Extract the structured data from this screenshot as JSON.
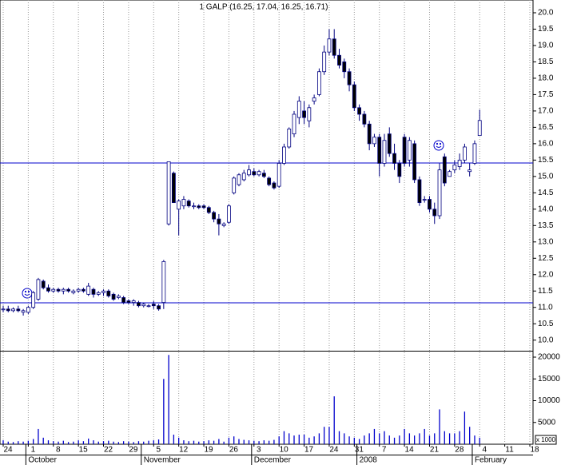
{
  "chart_data": {
    "type": "candlestick",
    "title": "1 GALP (16.25, 17.04, 16.25, 16.71)",
    "categories": [
      "24",
      null,
      null,
      null,
      null,
      "1",
      null,
      null,
      null,
      null,
      "8",
      null,
      null,
      null,
      null,
      "15",
      null,
      null,
      null,
      null,
      "22",
      null,
      null,
      null,
      null,
      "29",
      null,
      null,
      null,
      null,
      "5",
      null,
      null,
      null,
      null,
      "12",
      null,
      null,
      null,
      null,
      "19",
      null,
      null,
      null,
      null,
      "26",
      null,
      null,
      null,
      null,
      "3",
      null,
      null,
      null,
      null,
      "10",
      null,
      null,
      null,
      null,
      "17",
      null,
      null,
      null,
      null,
      "24",
      null,
      null,
      null,
      null,
      "31",
      null,
      null,
      null,
      null,
      "7",
      null,
      null,
      null,
      null,
      "14",
      null,
      null,
      null,
      null,
      "21",
      null,
      null,
      null,
      null,
      "28",
      null,
      null,
      null,
      null,
      "4",
      null,
      null,
      null,
      null,
      "11",
      null,
      null,
      null,
      null,
      "18"
    ],
    "months": [
      "October",
      "November",
      "December",
      "2008",
      "February"
    ],
    "open": [
      10.95,
      10.95,
      10.9,
      10.95,
      10.85,
      10.85,
      11.0,
      11.25,
      11.8,
      11.6,
      11.5,
      11.55,
      11.5,
      11.55,
      11.45,
      11.5,
      11.55,
      11.4,
      11.55,
      11.4,
      11.45,
      11.5,
      11.4,
      11.3,
      11.3,
      11.2,
      11.15,
      11.15,
      11.05,
      11.05,
      11.1,
      11.05,
      11.15,
      13.55,
      15.1,
      14.0,
      14.1,
      14.25,
      14.1,
      14.1,
      14.1,
      14.05,
      13.9,
      13.7,
      13.5,
      13.6,
      14.5,
      14.75,
      14.9,
      15.05,
      15.15,
      15.05,
      15.1,
      14.95,
      14.8,
      14.7,
      15.4,
      15.9,
      16.3,
      16.8,
      17.0,
      16.7,
      17.3,
      17.5,
      18.2,
      18.8,
      19.2,
      18.7,
      18.5,
      18.2,
      17.8,
      17.1,
      16.9,
      16.6,
      16.0,
      16.2,
      15.4,
      16.3,
      15.7,
      15.4,
      16.2,
      15.5,
      16.0,
      14.9,
      14.3,
      14.3,
      14.0,
      13.8,
      15.6,
      15.0,
      15.2,
      15.3,
      15.5,
      15.15,
      15.4,
      16.25,
      null,
      null,
      null,
      null,
      null,
      null,
      null,
      null,
      null,
      null
    ],
    "high": [
      11.05,
      11.05,
      11.0,
      11.05,
      10.95,
      11.05,
      11.5,
      11.9,
      11.85,
      11.7,
      11.6,
      11.6,
      11.6,
      11.6,
      11.55,
      11.6,
      11.6,
      11.75,
      11.6,
      11.5,
      11.55,
      11.55,
      11.45,
      11.4,
      11.35,
      11.25,
      11.25,
      11.2,
      11.15,
      11.1,
      11.2,
      11.1,
      12.45,
      15.45,
      15.15,
      14.3,
      14.4,
      14.3,
      14.2,
      14.15,
      14.15,
      14.1,
      13.95,
      13.85,
      13.6,
      14.15,
      15.0,
      15.1,
      15.2,
      15.35,
      15.25,
      15.2,
      15.2,
      15.0,
      14.85,
      15.5,
      16.0,
      16.5,
      17.0,
      17.45,
      17.3,
      17.2,
      17.5,
      18.3,
      19.0,
      19.5,
      19.5,
      18.9,
      18.6,
      18.3,
      17.9,
      17.2,
      17.0,
      16.7,
      16.3,
      16.3,
      16.3,
      16.5,
      16.0,
      15.5,
      16.3,
      16.2,
      16.1,
      15.0,
      14.4,
      14.4,
      14.2,
      15.4,
      15.7,
      15.2,
      15.5,
      15.7,
      16.0,
      15.4,
      16.1,
      17.04,
      null,
      null,
      null,
      null,
      null,
      null,
      null,
      null,
      null,
      null
    ],
    "low": [
      10.85,
      10.85,
      10.85,
      10.85,
      10.75,
      10.8,
      10.95,
      11.2,
      11.55,
      11.45,
      11.45,
      11.45,
      11.4,
      11.45,
      11.4,
      11.45,
      11.45,
      11.35,
      11.3,
      11.35,
      11.35,
      11.3,
      11.2,
      11.25,
      11.1,
      11.1,
      11.05,
      11.0,
      11.0,
      11.0,
      10.95,
      10.9,
      10.95,
      13.5,
      14.2,
      13.2,
      14.0,
      14.05,
      14.0,
      14.0,
      14.0,
      13.85,
      13.6,
      13.2,
      13.45,
      13.55,
      14.45,
      14.7,
      14.85,
      15.0,
      15.0,
      15.0,
      14.95,
      14.7,
      14.6,
      14.65,
      15.35,
      15.85,
      16.2,
      16.6,
      16.6,
      16.5,
      17.2,
      17.45,
      18.1,
      18.7,
      18.6,
      18.3,
      18.0,
      17.6,
      17.0,
      16.7,
      16.5,
      15.8,
      15.9,
      15.0,
      15.3,
      15.6,
      15.2,
      14.8,
      15.3,
      15.3,
      14.8,
      14.1,
      14.2,
      13.9,
      13.55,
      13.7,
      14.7,
      15.0,
      15.1,
      15.2,
      15.4,
      15.0,
      15.35,
      16.25,
      null,
      null,
      null,
      null,
      null,
      null,
      null,
      null,
      null,
      null
    ],
    "close": [
      10.95,
      10.9,
      10.95,
      10.9,
      10.9,
      11.0,
      11.45,
      11.85,
      11.6,
      11.5,
      11.55,
      11.5,
      11.55,
      11.5,
      11.5,
      11.55,
      11.5,
      11.65,
      11.4,
      11.45,
      11.5,
      11.35,
      11.25,
      11.35,
      11.15,
      11.15,
      11.2,
      11.05,
      11.1,
      11.05,
      11.05,
      10.95,
      12.4,
      15.45,
      14.2,
      14.25,
      14.3,
      14.1,
      14.1,
      14.05,
      14.05,
      13.9,
      13.7,
      13.55,
      13.55,
      14.1,
      14.95,
      15.05,
      15.1,
      15.2,
      15.05,
      15.15,
      15.0,
      14.75,
      14.65,
      15.4,
      15.9,
      16.45,
      16.9,
      17.3,
      16.8,
      17.1,
      17.4,
      18.2,
      18.8,
      19.2,
      18.7,
      18.4,
      18.2,
      17.8,
      17.1,
      16.9,
      16.6,
      16.0,
      16.2,
      15.4,
      16.1,
      15.7,
      15.4,
      15.0,
      15.4,
      16.1,
      14.9,
      14.2,
      14.3,
      14.0,
      13.8,
      15.2,
      14.8,
      15.15,
      15.35,
      15.5,
      15.9,
      15.2,
      16.0,
      16.71,
      null,
      null,
      null,
      null,
      null,
      null,
      null,
      null,
      null,
      null
    ],
    "volume": [
      900,
      600,
      500,
      700,
      600,
      800,
      1200,
      3500,
      1500,
      900,
      700,
      600,
      800,
      500,
      600,
      900,
      700,
      1300,
      900,
      600,
      700,
      800,
      600,
      500,
      700,
      600,
      500,
      700,
      600,
      800,
      900,
      1100,
      15000,
      20500,
      2200,
      1500,
      900,
      700,
      800,
      600,
      700,
      900,
      800,
      1200,
      600,
      1500,
      1800,
      1200,
      1000,
      900,
      800,
      700,
      900,
      800,
      1000,
      1800,
      3000,
      2500,
      2000,
      2200,
      2200,
      1500,
      1800,
      2500,
      4000,
      4000,
      11000,
      3000,
      2500,
      1800,
      1500,
      1200,
      2000,
      2500,
      3500,
      2500,
      3000,
      2000,
      1500,
      2000,
      3500,
      2500,
      2000,
      2500,
      3500,
      2000,
      2500,
      8000,
      3000,
      2500,
      2500,
      3000,
      7500,
      4000,
      2000,
      1500,
      null,
      null,
      null,
      null,
      null,
      null,
      null,
      null,
      null,
      null
    ],
    "ylim": [
      9.7,
      20.39
    ],
    "yticks": [
      {
        "value": 10,
        "label": "10.0"
      },
      10.5,
      {
        "value": 11,
        "label": "11.0"
      },
      11.5,
      {
        "value": 12,
        "label": "12.0"
      },
      12.5,
      {
        "value": 13,
        "label": "13.0"
      },
      13.5,
      {
        "value": 14,
        "label": "14.0"
      },
      14.5,
      {
        "value": 15,
        "label": "15.0"
      },
      15.5,
      {
        "value": 16,
        "label": "16.0"
      },
      16.5,
      {
        "value": 17,
        "label": "17.0"
      },
      17.5,
      {
        "value": 18,
        "label": "18.0"
      },
      18.5,
      {
        "value": 19,
        "label": "19.0"
      },
      19.5,
      {
        "value": 20,
        "label": "20.0"
      }
    ],
    "y2lim": [
      0,
      21100
    ],
    "y2ticks": [
      5000,
      10000,
      15000,
      20000
    ],
    "y2_unit": "x 1000",
    "hlines": [
      15.41,
      11.14
    ],
    "line_color": "#0000cc",
    "up_color": "#ffffff",
    "down_color": "#000000",
    "outline_color": "#000080",
    "volume_color": "#0000cc",
    "grid": true
  }
}
